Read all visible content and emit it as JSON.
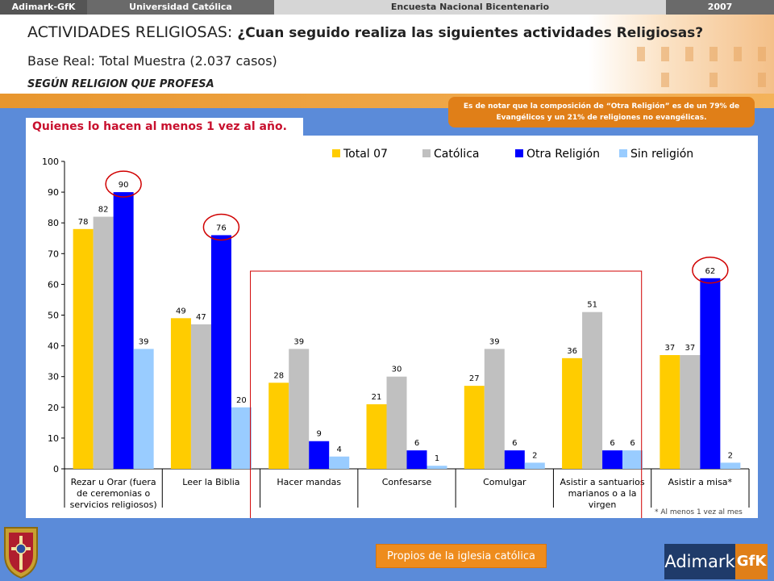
{
  "topbar": {
    "brand": "Adimark-GfK",
    "university": "Universidad Católica",
    "survey": "Encuesta Nacional Bicentenario",
    "year": "2007"
  },
  "header": {
    "title_prefix": "ACTIVIDADES RELIGIOSAS: ",
    "title_question": "¿Cuan seguido realiza las siguientes actividades Religiosas?",
    "base": "Base Real: Total Muestra (2.037 casos)",
    "segment": "SEGÚN RELIGION QUE PROFESA"
  },
  "note": "Es de notar que la composición de “Otra Religión” es de un 79% de Evangélicos y un 21% de religiones no evangélicas.",
  "tab_label": "Quienes lo hacen al menos 1 vez al año.",
  "footnote": "* Al menos 1 vez al mes",
  "propios_label": "Propios de la iglesia católica",
  "logo": {
    "adimark": "Adimark",
    "gfk": "GfK"
  },
  "chart_data": {
    "type": "bar",
    "categories": [
      "Rezar u Orar (fuera de ceremonias o servicios religiosos)",
      "Leer la Biblia",
      "Hacer mandas",
      "Confesarse",
      "Comulgar",
      "Asistir a santuarios marianos o a la virgen",
      "Asistir a misa*"
    ],
    "category_lines": [
      [
        "Rezar u Orar (fuera",
        "de ceremonias o",
        "servicios religiosos)"
      ],
      [
        "Leer la Biblia"
      ],
      [
        "Hacer mandas"
      ],
      [
        "Confesarse"
      ],
      [
        "Comulgar"
      ],
      [
        "Asistir a santuarios",
        "marianos o a la",
        "virgen"
      ],
      [
        "Asistir a misa*"
      ]
    ],
    "series": [
      {
        "name": "Total 07",
        "color": "#ffcc00",
        "values": [
          78,
          49,
          28,
          21,
          27,
          36,
          37
        ]
      },
      {
        "name": "Católica",
        "color": "#c0c0c0",
        "values": [
          82,
          47,
          39,
          30,
          39,
          51,
          37
        ]
      },
      {
        "name": "Otra Religión",
        "color": "#0000ff",
        "values": [
          90,
          76,
          9,
          6,
          6,
          6,
          62
        ]
      },
      {
        "name": "Sin religión",
        "color": "#99ccff",
        "values": [
          39,
          20,
          4,
          1,
          2,
          6,
          2
        ]
      }
    ],
    "ylim": [
      0,
      100
    ],
    "yticks": [
      0,
      10,
      20,
      30,
      40,
      50,
      60,
      70,
      80,
      90,
      100
    ],
    "highlighted": [
      {
        "category": 0,
        "series": 2
      },
      {
        "category": 1,
        "series": 2
      },
      {
        "category": 6,
        "series": 2
      }
    ],
    "legend_position": "top-right"
  }
}
